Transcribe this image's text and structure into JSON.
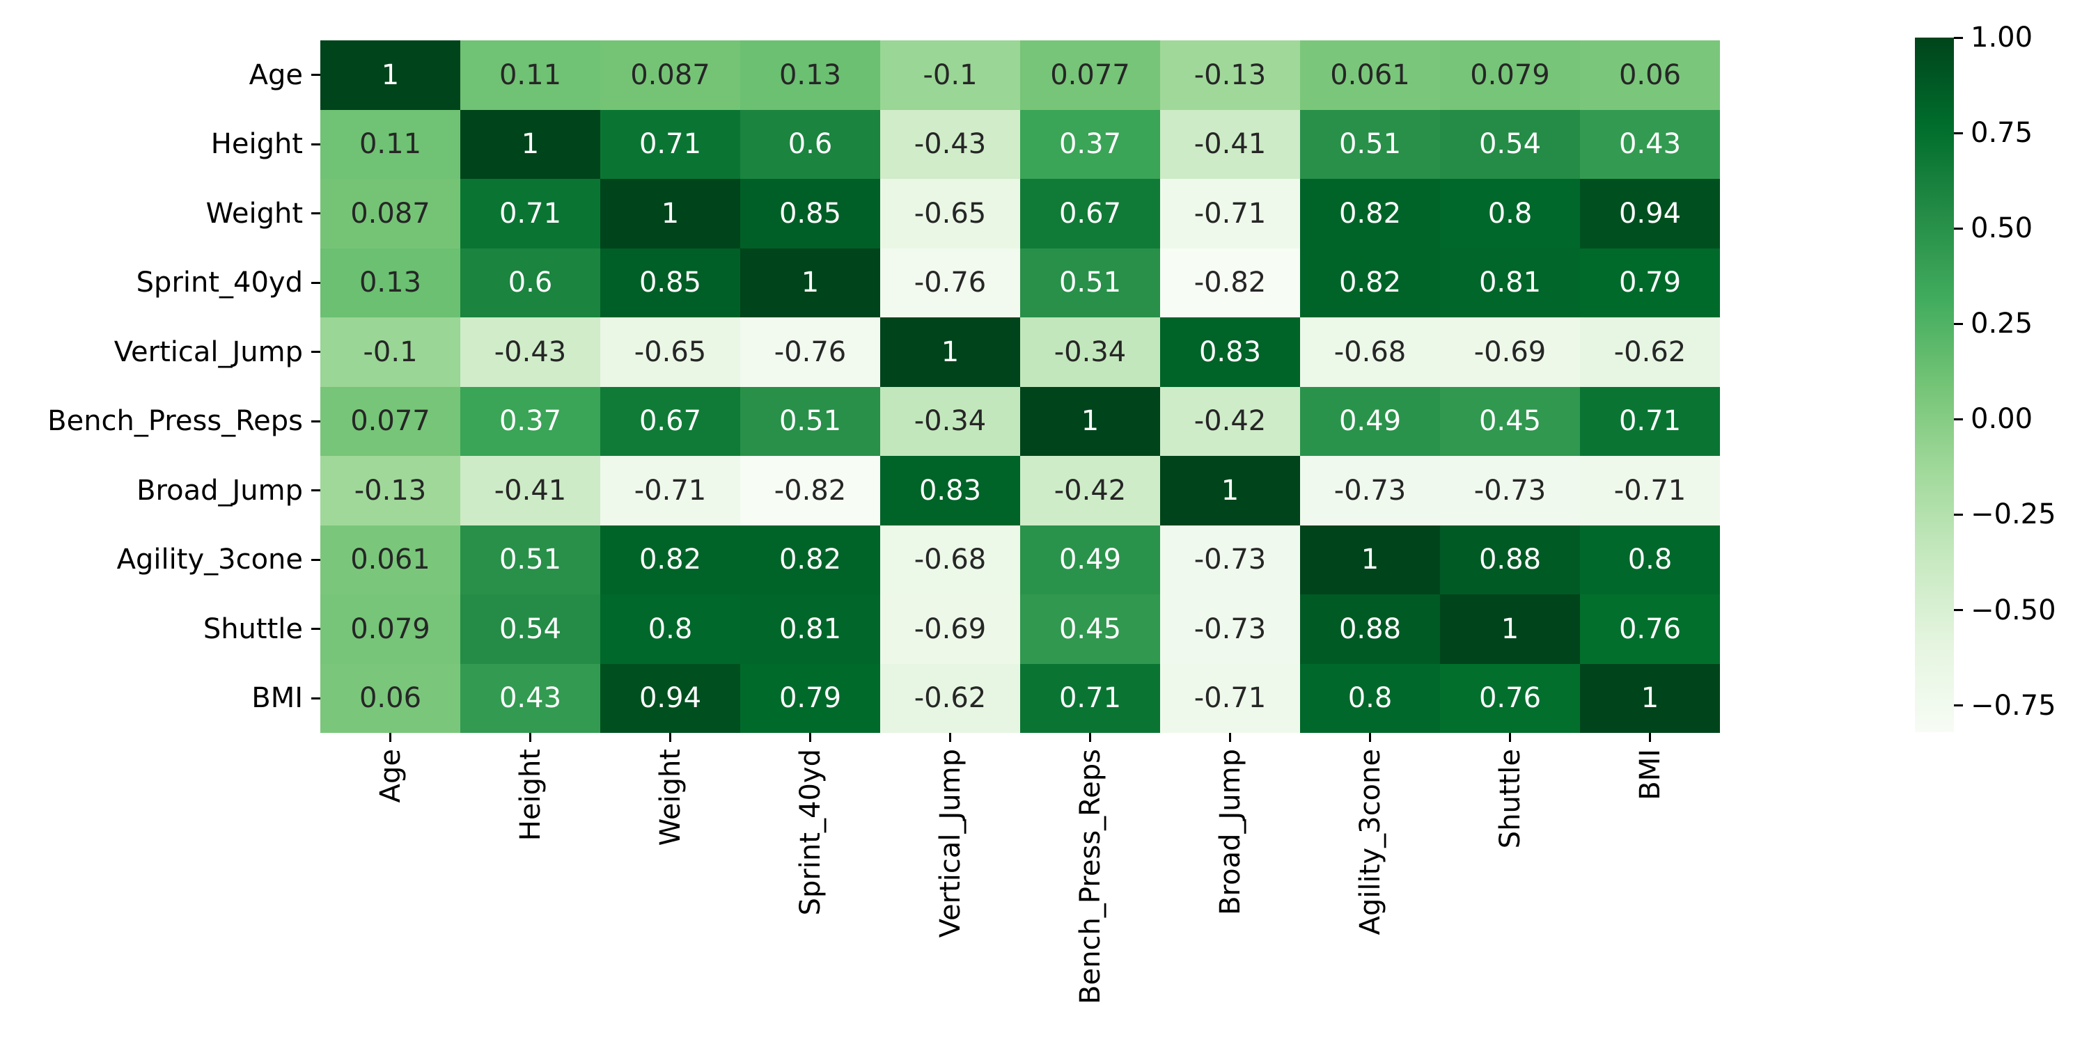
{
  "figure": {
    "background": "#ffffff"
  },
  "chart_data": {
    "type": "heatmap",
    "title": "",
    "description": "Correlation matrix heatmap of athletic combine measurements",
    "labels": [
      "Age",
      "Height",
      "Weight",
      "Sprint_40yd",
      "Vertical_Jump",
      "Bench_Press_Reps",
      "Broad_Jump",
      "Agility_3cone",
      "Shuttle",
      "BMI"
    ],
    "matrix": [
      [
        1,
        0.11,
        0.087,
        0.13,
        -0.1,
        0.077,
        -0.13,
        0.061,
        0.079,
        0.06
      ],
      [
        0.11,
        1,
        0.71,
        0.6,
        -0.43,
        0.37,
        -0.41,
        0.51,
        0.54,
        0.43
      ],
      [
        0.087,
        0.71,
        1,
        0.85,
        -0.65,
        0.67,
        -0.71,
        0.82,
        0.8,
        0.94
      ],
      [
        0.13,
        0.6,
        0.85,
        1,
        -0.76,
        0.51,
        -0.82,
        0.82,
        0.81,
        0.79
      ],
      [
        -0.1,
        -0.43,
        -0.65,
        -0.76,
        1,
        -0.34,
        0.83,
        -0.68,
        -0.69,
        -0.62
      ],
      [
        0.077,
        0.37,
        0.67,
        0.51,
        -0.34,
        1,
        -0.42,
        0.49,
        0.45,
        0.71
      ],
      [
        -0.13,
        -0.41,
        -0.71,
        -0.82,
        0.83,
        -0.42,
        1,
        -0.73,
        -0.73,
        -0.71
      ],
      [
        0.061,
        0.51,
        0.82,
        0.82,
        -0.68,
        0.49,
        -0.73,
        1,
        0.88,
        0.8
      ],
      [
        0.079,
        0.54,
        0.8,
        0.81,
        -0.69,
        0.45,
        -0.73,
        0.88,
        1,
        0.76
      ],
      [
        0.06,
        0.43,
        0.94,
        0.79,
        -0.62,
        0.71,
        -0.71,
        0.8,
        0.76,
        1
      ]
    ],
    "annotation_format": ".2g",
    "colormap": "Greens",
    "colormap_stops": [
      "#f7fcf5",
      "#e5f5e0",
      "#c7e9c0",
      "#a1d99b",
      "#74c476",
      "#41ab5d",
      "#238b45",
      "#006d2c",
      "#00441b"
    ],
    "vmin": -0.82,
    "vmax": 1.0,
    "text_color_dark": "#262626",
    "text_color_light": "#ffffff",
    "tick_color": "#000000",
    "legend_position": "right",
    "grid": false,
    "colorbar": {
      "ticks": [
        {
          "value": 1.0,
          "label": "1.00"
        },
        {
          "value": 0.75,
          "label": "0.75"
        },
        {
          "value": 0.5,
          "label": "0.50"
        },
        {
          "value": 0.25,
          "label": "0.25"
        },
        {
          "value": 0.0,
          "label": "0.00"
        },
        {
          "value": -0.25,
          "label": "−0.25"
        },
        {
          "value": -0.5,
          "label": "−0.50"
        },
        {
          "value": -0.75,
          "label": "−0.75"
        }
      ]
    }
  }
}
